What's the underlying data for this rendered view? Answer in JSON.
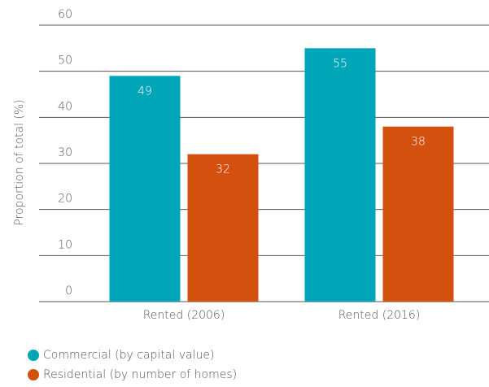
{
  "chart_data": {
    "type": "bar",
    "categories": [
      "Rented (2006)",
      "Rented (2016)"
    ],
    "series": [
      {
        "name": "Commercial (by capital value)",
        "color": "#00a5b8",
        "values": [
          49,
          55
        ]
      },
      {
        "name": "Residential (by number of homes)",
        "color": "#d4500e",
        "values": [
          32,
          38
        ]
      }
    ],
    "y_label": "Proportion of total (%)",
    "ylim": [
      0,
      60
    ],
    "yticks": [
      0,
      10,
      20,
      30,
      40,
      50,
      60
    ],
    "grid": true
  }
}
